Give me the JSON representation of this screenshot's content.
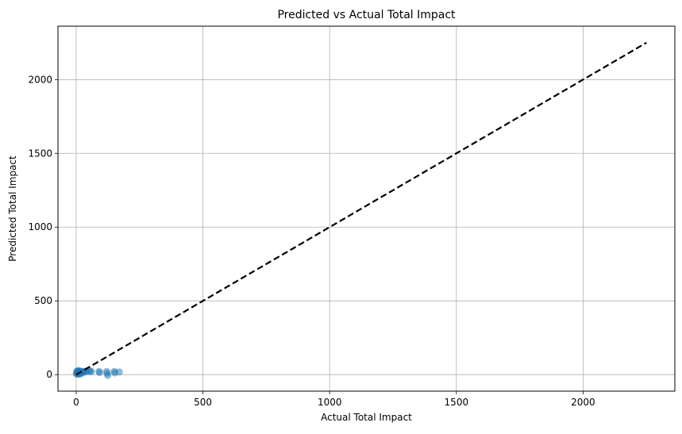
{
  "chart_data": {
    "type": "scatter",
    "title": "Predicted vs Actual Total Impact",
    "xlabel": "Actual Total Impact",
    "ylabel": "Predicted Total Impact",
    "xlim": [
      -72,
      2362
    ],
    "ylim": [
      -112,
      2362
    ],
    "xticks": [
      0,
      500,
      1000,
      1500,
      2000
    ],
    "yticks": [
      0,
      500,
      1000,
      1500,
      2000
    ],
    "grid": true,
    "point_color": "#1f77b4",
    "line_color": "#000000",
    "points": [
      {
        "x": 0,
        "y": 5
      },
      {
        "x": 2,
        "y": 20
      },
      {
        "x": 3,
        "y": 12
      },
      {
        "x": 4,
        "y": 25
      },
      {
        "x": 5,
        "y": 8
      },
      {
        "x": 6,
        "y": 18
      },
      {
        "x": 7,
        "y": 2
      },
      {
        "x": 8,
        "y": 22
      },
      {
        "x": 9,
        "y": 15
      },
      {
        "x": 10,
        "y": 28
      },
      {
        "x": 11,
        "y": 10
      },
      {
        "x": 12,
        "y": 20
      },
      {
        "x": 13,
        "y": 4
      },
      {
        "x": 14,
        "y": 16
      },
      {
        "x": 15,
        "y": 24
      },
      {
        "x": 17,
        "y": 12
      },
      {
        "x": 18,
        "y": 20
      },
      {
        "x": 20,
        "y": 8
      },
      {
        "x": 22,
        "y": 18
      },
      {
        "x": 24,
        "y": 14
      },
      {
        "x": 26,
        "y": 22
      },
      {
        "x": 30,
        "y": 20
      },
      {
        "x": 35,
        "y": 18
      },
      {
        "x": 40,
        "y": 24
      },
      {
        "x": 50,
        "y": 22
      },
      {
        "x": 55,
        "y": 26
      },
      {
        "x": 60,
        "y": 20
      },
      {
        "x": 90,
        "y": 22
      },
      {
        "x": 92,
        "y": 14
      },
      {
        "x": 120,
        "y": 22
      },
      {
        "x": 122,
        "y": 10
      },
      {
        "x": 124,
        "y": -5
      },
      {
        "x": 150,
        "y": 22
      },
      {
        "x": 152,
        "y": 12
      },
      {
        "x": 170,
        "y": 18
      }
    ],
    "reference_line": {
      "x": [
        0,
        2250
      ],
      "y": [
        0,
        2250
      ],
      "style": "dashed"
    }
  }
}
